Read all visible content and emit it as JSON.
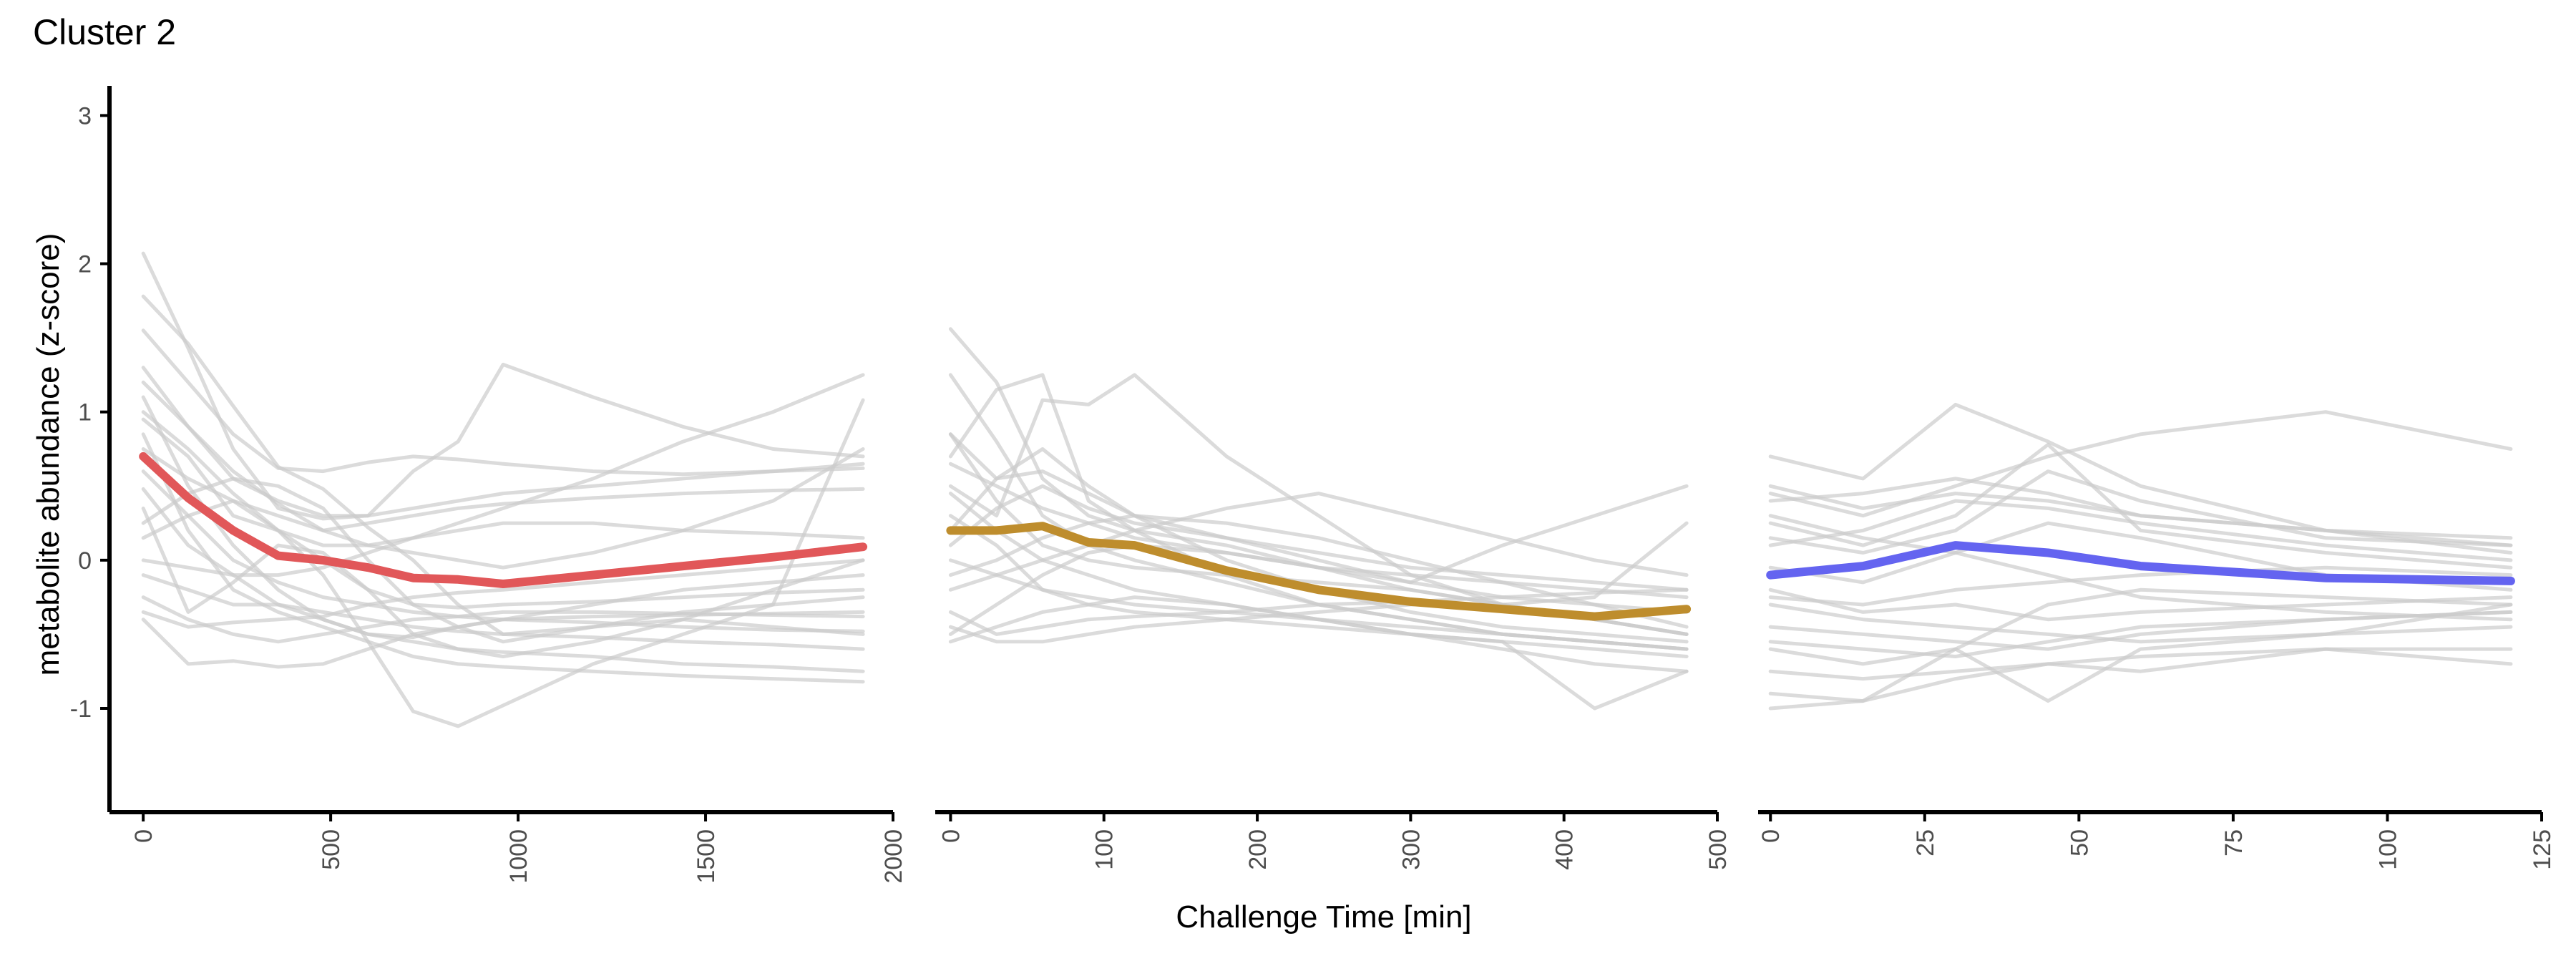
{
  "title": "Cluster 2",
  "xlabel": "Challenge Time [min]",
  "ylabel": "metabolite abundance (z-score)",
  "chart_data": {
    "type": "line",
    "title": "Cluster 2",
    "xlabel": "Challenge Time [min]",
    "ylabel": "metabolite abundance (z-score)",
    "ylim": [
      -1.7,
      3.2
    ],
    "yticks": [
      -1,
      0,
      1,
      2,
      3
    ],
    "grid": false,
    "legend": "none",
    "background_color": "#cccccc",
    "panels": [
      {
        "xlim": [
          -90,
          2000
        ],
        "xticks": [
          0,
          500,
          1000,
          1500,
          2000
        ],
        "x": [
          0,
          120,
          240,
          360,
          480,
          600,
          720,
          840,
          960,
          1200,
          1440,
          1680,
          1920
        ],
        "mean_color": "#e15759",
        "mean": [
          0.7,
          0.42,
          0.2,
          0.03,
          0.0,
          -0.05,
          -0.12,
          -0.13,
          -0.16,
          -0.1,
          -0.04,
          0.02,
          0.09
        ],
        "background": [
          [
            2.07,
            1.43,
            0.75,
            0.35,
            0.28,
            0.3,
            0.6,
            0.8,
            1.32,
            1.1,
            0.9,
            0.75,
            0.7
          ],
          [
            1.78,
            1.46,
            1.04,
            0.63,
            0.48,
            0.22,
            0.0,
            -0.3,
            -0.5,
            -0.45,
            -0.4,
            -0.45,
            -0.5
          ],
          [
            1.55,
            1.2,
            0.85,
            0.62,
            0.6,
            0.66,
            0.7,
            0.68,
            0.65,
            0.6,
            0.58,
            0.6,
            0.62
          ],
          [
            1.2,
            0.9,
            0.6,
            0.38,
            0.2,
            0.1,
            0.15,
            0.25,
            0.35,
            0.55,
            0.8,
            1.0,
            1.25
          ],
          [
            1.1,
            0.5,
            0.1,
            -0.2,
            -0.4,
            -0.5,
            -0.52,
            -0.45,
            -0.4,
            -0.3,
            -0.2,
            -0.15,
            -0.1
          ],
          [
            0.95,
            0.7,
            0.3,
            0.2,
            -0.1,
            -0.55,
            -1.02,
            -1.12,
            -0.98,
            -0.7,
            -0.5,
            -0.3,
            1.08
          ],
          [
            0.85,
            0.2,
            -0.2,
            -0.35,
            -0.45,
            -0.55,
            -0.65,
            -0.7,
            -0.72,
            -0.75,
            -0.78,
            -0.8,
            -0.82
          ],
          [
            0.75,
            0.55,
            0.4,
            0.3,
            0.2,
            0.25,
            0.3,
            0.35,
            0.38,
            0.42,
            0.45,
            0.47,
            0.48
          ],
          [
            0.6,
            0.3,
            0.0,
            -0.15,
            -0.25,
            -0.3,
            -0.35,
            -0.38,
            -0.4,
            -0.42,
            -0.45,
            -0.47,
            -0.48
          ],
          [
            0.48,
            0.1,
            -0.1,
            -0.3,
            -0.4,
            -0.5,
            -0.55,
            -0.6,
            -0.62,
            -0.65,
            -0.7,
            -0.72,
            -0.75
          ],
          [
            0.35,
            -0.35,
            -0.15,
            0.1,
            0.05,
            -0.2,
            -0.5,
            -0.6,
            -0.65,
            -0.55,
            -0.4,
            -0.2,
            0.0
          ],
          [
            0.15,
            0.3,
            0.4,
            0.2,
            0.0,
            -0.2,
            -0.3,
            -0.32,
            -0.3,
            -0.28,
            -0.25,
            -0.22,
            -0.2
          ],
          [
            0.0,
            -0.05,
            -0.1,
            -0.1,
            -0.05,
            0.05,
            0.15,
            0.2,
            0.25,
            0.25,
            0.2,
            0.18,
            0.15
          ],
          [
            -0.1,
            -0.2,
            -0.3,
            -0.3,
            -0.35,
            -0.4,
            -0.45,
            -0.48,
            -0.5,
            -0.52,
            -0.55,
            -0.57,
            -0.6
          ],
          [
            -0.25,
            -0.4,
            -0.5,
            -0.55,
            -0.5,
            -0.45,
            -0.4,
            -0.38,
            -0.35,
            -0.35,
            -0.36,
            -0.37,
            -0.38
          ],
          [
            -0.4,
            -0.7,
            -0.68,
            -0.72,
            -0.7,
            -0.6,
            -0.5,
            -0.45,
            -0.4,
            -0.38,
            -0.37,
            -0.36,
            -0.35
          ],
          [
            1.0,
            0.75,
            0.45,
            0.2,
            0.1,
            0.1,
            0.05,
            0.0,
            -0.05,
            0.05,
            0.2,
            0.4,
            0.75
          ],
          [
            0.25,
            0.45,
            0.55,
            0.5,
            0.35,
            0.0,
            -0.3,
            -0.45,
            -0.55,
            -0.45,
            -0.35,
            -0.3,
            -0.25
          ],
          [
            -0.35,
            -0.45,
            -0.42,
            -0.4,
            -0.38,
            -0.3,
            -0.25,
            -0.22,
            -0.2,
            -0.15,
            -0.1,
            -0.05,
            0.0
          ],
          [
            1.3,
            0.9,
            0.55,
            0.4,
            0.3,
            0.3,
            0.35,
            0.4,
            0.45,
            0.5,
            0.55,
            0.6,
            0.65
          ]
        ]
      },
      {
        "xlim": [
          -10,
          500
        ],
        "xticks": [
          0,
          100,
          200,
          300,
          400,
          500
        ],
        "x": [
          0,
          30,
          60,
          90,
          120,
          180,
          240,
          300,
          360,
          420,
          480
        ],
        "mean_color": "#be8d2d",
        "mean": [
          0.2,
          0.2,
          0.23,
          0.12,
          0.1,
          -0.07,
          -0.2,
          -0.28,
          -0.33,
          -0.38,
          -0.33
        ],
        "background": [
          [
            1.56,
            1.2,
            0.55,
            0.3,
            0.2,
            0.1,
            -0.05,
            -0.2,
            -0.3,
            -0.4,
            -0.5
          ],
          [
            1.25,
            0.8,
            0.3,
            0.1,
            0.0,
            -0.15,
            -0.3,
            -0.4,
            -0.5,
            -0.55,
            -0.6
          ],
          [
            0.85,
            0.55,
            0.75,
            0.5,
            0.3,
            0.0,
            -0.2,
            -0.35,
            -0.45,
            -0.5,
            -0.55
          ],
          [
            0.7,
            1.15,
            1.25,
            0.4,
            0.2,
            -0.1,
            -0.3,
            -0.4,
            -0.5,
            -0.55,
            -0.6
          ],
          [
            0.5,
            0.3,
            1.08,
            1.05,
            1.25,
            0.7,
            0.3,
            -0.1,
            -0.3,
            -0.4,
            -0.5
          ],
          [
            0.3,
            0.1,
            -0.2,
            -0.3,
            -0.35,
            -0.4,
            -0.45,
            -0.5,
            -0.55,
            -1.0,
            -0.75
          ],
          [
            0.1,
            0.35,
            0.5,
            0.35,
            0.25,
            0.15,
            0.0,
            -0.15,
            -0.25,
            -0.3,
            -0.35
          ],
          [
            0.0,
            -0.1,
            -0.2,
            -0.25,
            -0.3,
            -0.35,
            -0.4,
            -0.45,
            -0.5,
            -0.55,
            -0.6
          ],
          [
            -0.2,
            -0.1,
            0.0,
            0.1,
            0.2,
            0.35,
            0.45,
            0.3,
            0.15,
            0.0,
            -0.1
          ],
          [
            -0.35,
            -0.5,
            -0.45,
            -0.4,
            -0.38,
            -0.35,
            -0.3,
            -0.28,
            -0.25,
            -0.22,
            -0.2
          ],
          [
            -0.5,
            -0.3,
            -0.1,
            0.05,
            0.1,
            0.05,
            -0.05,
            -0.15,
            0.1,
            0.3,
            0.5
          ],
          [
            0.45,
            0.2,
            0.0,
            -0.1,
            -0.2,
            -0.3,
            -0.4,
            -0.5,
            -0.6,
            -0.7,
            -0.75
          ],
          [
            -0.45,
            -0.55,
            -0.55,
            -0.5,
            -0.45,
            -0.4,
            -0.35,
            -0.3,
            -0.3,
            -0.25,
            0.25
          ],
          [
            0.65,
            0.5,
            0.35,
            0.25,
            0.15,
            0.05,
            -0.05,
            -0.1,
            -0.15,
            -0.2,
            -0.25
          ],
          [
            -0.1,
            0.0,
            0.15,
            0.25,
            0.3,
            0.25,
            0.15,
            0.0,
            -0.15,
            -0.3,
            -0.45
          ],
          [
            0.85,
            0.4,
            0.1,
            0.0,
            -0.05,
            -0.1,
            -0.15,
            -0.2,
            -0.3,
            -0.4,
            -0.5
          ],
          [
            -0.55,
            -0.45,
            -0.35,
            -0.3,
            -0.25,
            -0.3,
            -0.4,
            -0.5,
            -0.55,
            -0.6,
            -0.65
          ],
          [
            0.2,
            0.55,
            0.6,
            0.45,
            0.3,
            0.15,
            0.05,
            -0.05,
            -0.1,
            -0.15,
            -0.2
          ]
        ]
      },
      {
        "xlim": [
          -2,
          125
        ],
        "xticks": [
          0,
          25,
          50,
          75,
          100,
          125
        ],
        "x": [
          0,
          15,
          30,
          45,
          60,
          90,
          120
        ],
        "mean_color": "#6464f0",
        "mean": [
          -0.1,
          -0.04,
          0.1,
          0.05,
          -0.04,
          -0.12,
          -0.14
        ],
        "background": [
          [
            0.7,
            0.55,
            1.05,
            0.8,
            0.5,
            0.2,
            0.05
          ],
          [
            0.45,
            0.3,
            0.5,
            0.7,
            0.85,
            1.0,
            0.75
          ],
          [
            0.4,
            0.45,
            0.55,
            0.45,
            0.3,
            0.2,
            0.1
          ],
          [
            0.25,
            0.1,
            0.3,
            0.78,
            0.2,
            0.05,
            -0.05
          ],
          [
            0.1,
            0.2,
            0.4,
            0.35,
            0.25,
            0.1,
            0.0
          ],
          [
            -0.05,
            -0.15,
            0.05,
            0.25,
            0.15,
            -0.1,
            -0.2
          ],
          [
            -0.2,
            -0.35,
            -0.3,
            -0.4,
            -0.35,
            -0.3,
            -0.25
          ],
          [
            -0.3,
            -0.4,
            -0.45,
            -0.5,
            -0.55,
            -0.5,
            -0.45
          ],
          [
            -0.45,
            -0.5,
            -0.55,
            -0.6,
            -0.5,
            -0.4,
            -0.35
          ],
          [
            -0.6,
            -0.7,
            -0.6,
            -0.95,
            -0.6,
            -0.5,
            -0.3
          ],
          [
            -0.75,
            -0.8,
            -0.75,
            -0.7,
            -0.75,
            -0.6,
            -0.6
          ],
          [
            -0.9,
            -0.95,
            -0.8,
            -0.7,
            -0.65,
            -0.6,
            -0.7
          ],
          [
            -1.0,
            -0.95,
            -0.6,
            -0.3,
            -0.2,
            -0.25,
            -0.3
          ],
          [
            0.15,
            0.05,
            0.2,
            0.6,
            0.4,
            0.15,
            0.1
          ],
          [
            0.5,
            0.35,
            0.45,
            0.4,
            0.3,
            0.2,
            0.15
          ],
          [
            -0.25,
            -0.3,
            -0.2,
            -0.15,
            -0.1,
            -0.05,
            -0.1
          ],
          [
            0.3,
            0.15,
            0.05,
            -0.1,
            -0.25,
            -0.35,
            -0.4
          ],
          [
            -0.55,
            -0.6,
            -0.65,
            -0.55,
            -0.45,
            -0.4,
            -0.35
          ]
        ]
      }
    ]
  }
}
